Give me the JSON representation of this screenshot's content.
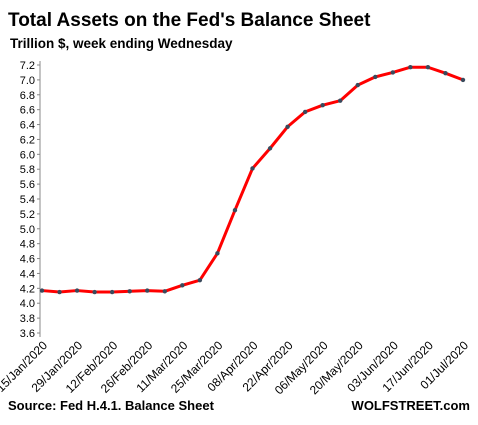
{
  "chart_data": {
    "type": "line",
    "title": "Total Assets on the Fed's Balance Sheet",
    "subtitle": "Trillion $, week ending Wednesday",
    "source": "Source: Fed H.4.1. Balance Sheet",
    "brand": "WOLFSTREET.com",
    "categories": [
      "15/Jan/2020",
      null,
      "29/Jan/2020",
      null,
      "12/Feb/2020",
      null,
      "26/Feb/2020",
      null,
      "11/Mar/2020",
      null,
      "25/Mar/2020",
      null,
      "08/Apr/2020",
      null,
      "22/Apr/2020",
      null,
      "06/May/2020",
      null,
      "20/May/2020",
      null,
      "03/Jun/2020",
      null,
      "17/Jun/2020",
      null,
      "01/Jul/2020"
    ],
    "series": [
      {
        "name": "Total Assets",
        "color": "#ff0000",
        "marker_color": "#3a4a5c",
        "values": [
          4.17,
          4.15,
          4.17,
          4.15,
          4.15,
          4.16,
          4.17,
          4.16,
          4.24,
          4.31,
          4.67,
          5.25,
          5.81,
          6.08,
          6.37,
          6.57,
          6.66,
          6.72,
          6.93,
          7.04,
          7.1,
          7.17,
          7.17,
          7.09,
          7.0
        ]
      }
    ],
    "ylim": [
      3.6,
      7.2
    ],
    "yticks": [
      3.6,
      3.8,
      {
        "value": 4,
        "label": "4.0"
      },
      4.2,
      4.4,
      4.6,
      4.8,
      {
        "value": 5,
        "label": "5.0"
      },
      5.2,
      5.4,
      5.6,
      5.8,
      {
        "value": 6,
        "label": "6.0"
      },
      6.2,
      6.4,
      6.6,
      6.8,
      {
        "value": 7,
        "label": "7.0"
      },
      7.2
    ],
    "grid": false
  }
}
